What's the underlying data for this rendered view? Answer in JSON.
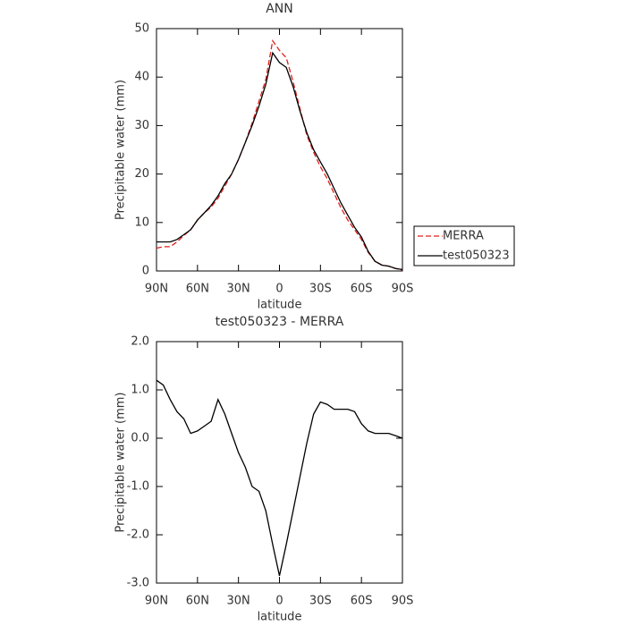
{
  "chart_data": [
    {
      "type": "line",
      "title": "ANN",
      "x_label": "latitude",
      "y_label": "Precipitable water (mm)",
      "x": [
        90,
        85,
        80,
        75,
        70,
        65,
        60,
        55,
        50,
        45,
        40,
        35,
        30,
        25,
        20,
        15,
        10,
        5,
        0,
        -5,
        -10,
        -15,
        -20,
        -25,
        -30,
        -35,
        -40,
        -45,
        -50,
        -55,
        -60,
        -65,
        -70,
        -75,
        -80,
        -85,
        -90
      ],
      "series": [
        {
          "name": "MERRA",
          "color": "#e0201b",
          "dash": true,
          "values": [
            4.7,
            5,
            5,
            6,
            7.3,
            8.5,
            10.5,
            12,
            13.2,
            15,
            17.5,
            20,
            23,
            26.5,
            30.5,
            35,
            39.5,
            47.5,
            45.5,
            44,
            39,
            33.5,
            28,
            24.5,
            21.5,
            19,
            16,
            13,
            10.5,
            8.5,
            6.5,
            3.8,
            2,
            1.2,
            1,
            0.5,
            0.2
          ]
        },
        {
          "name": "test050323",
          "color": "#000000",
          "dash": false,
          "values": [
            6,
            6,
            6,
            6.5,
            7.5,
            8.5,
            10.5,
            12,
            13.5,
            15.5,
            18,
            20,
            23,
            26.5,
            30,
            34,
            38.5,
            45,
            43,
            42,
            38,
            33,
            28.5,
            25,
            22.5,
            20,
            17,
            14,
            11.5,
            9,
            7,
            4,
            2,
            1.2,
            1,
            0.5,
            0.3
          ]
        }
      ],
      "xlim": [
        90,
        -90
      ],
      "xticks": [
        {
          "value": 90,
          "label": "90N"
        },
        {
          "value": 60,
          "label": "60N"
        },
        {
          "value": 30,
          "label": "30N"
        },
        0,
        {
          "value": -30,
          "label": "30S"
        },
        {
          "value": -60,
          "label": "60S"
        },
        {
          "value": -90,
          "label": "90S"
        }
      ],
      "ylim": [
        0,
        50
      ],
      "yticks": [
        0,
        10,
        20,
        30,
        40,
        50
      ],
      "legend": "right"
    },
    {
      "type": "line",
      "title": "test050323 - MERRA",
      "x_label": "latitude",
      "y_label": "Precipitable water (mm)",
      "x": [
        90,
        85,
        80,
        75,
        70,
        65,
        60,
        55,
        50,
        45,
        40,
        35,
        30,
        25,
        20,
        15,
        10,
        5,
        0,
        -5,
        -10,
        -15,
        -20,
        -25,
        -30,
        -35,
        -40,
        -45,
        -50,
        -55,
        -60,
        -65,
        -70,
        -75,
        -80,
        -85,
        -90
      ],
      "series": [
        {
          "name": "test050323 - MERRA",
          "color": "#000000",
          "dash": false,
          "values": [
            1.2,
            1.1,
            0.8,
            0.55,
            0.4,
            0.1,
            0.15,
            0.25,
            0.35,
            0.8,
            0.5,
            0.1,
            -0.3,
            -0.6,
            -1.0,
            -1.1,
            -1.5,
            -2.2,
            -2.85,
            -2.2,
            -1.5,
            -0.8,
            -0.1,
            0.5,
            0.75,
            0.7,
            0.6,
            0.6,
            0.6,
            0.55,
            0.3,
            0.15,
            0.1,
            0.1,
            0.1,
            0.05,
            0.0
          ]
        }
      ],
      "xlim": [
        90,
        -90
      ],
      "xticks": [
        {
          "value": 90,
          "label": "90N"
        },
        {
          "value": 60,
          "label": "60N"
        },
        {
          "value": 30,
          "label": "30N"
        },
        0,
        {
          "value": -30,
          "label": "30S"
        },
        {
          "value": -60,
          "label": "60S"
        },
        {
          "value": -90,
          "label": "90S"
        }
      ],
      "ylim": [
        -3,
        2
      ],
      "yticks": [
        {
          "value": -3,
          "label": "-3.0"
        },
        {
          "value": -2,
          "label": "-2.0"
        },
        {
          "value": -1,
          "label": "-1.0"
        },
        {
          "value": 0,
          "label": "0.0"
        },
        {
          "value": 1,
          "label": "1.0"
        },
        {
          "value": 2,
          "label": "2.0"
        }
      ]
    }
  ]
}
